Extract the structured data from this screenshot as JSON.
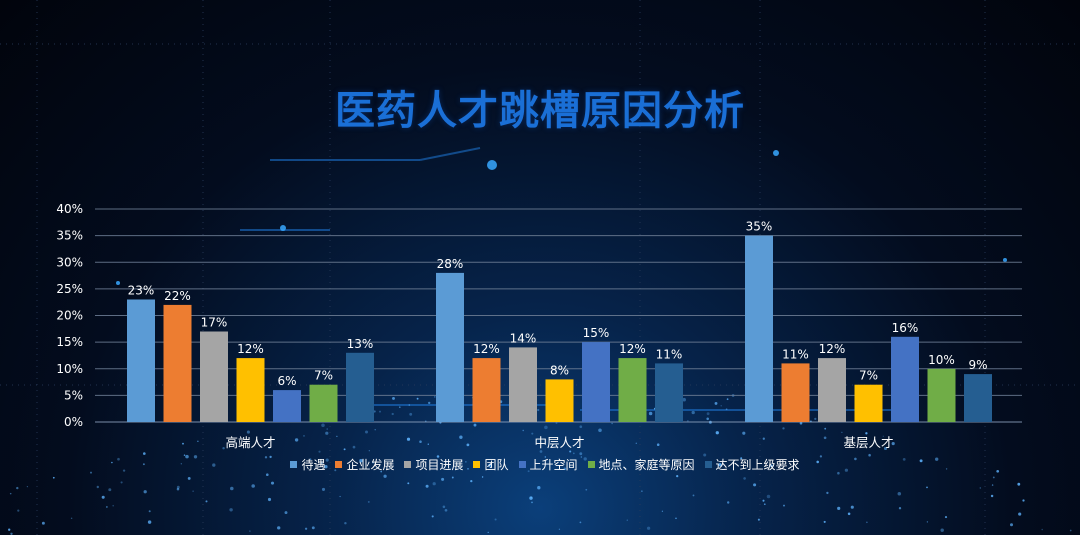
{
  "title": "医药人才跳槽原因分析",
  "chart_data": {
    "type": "bar",
    "categories": [
      "高端人才",
      "中层人才",
      "基层人才"
    ],
    "series": [
      {
        "name": "待遇",
        "color": "#5b9bd5",
        "values": [
          23,
          28,
          35
        ]
      },
      {
        "name": "企业发展",
        "color": "#ed7d31",
        "values": [
          22,
          12,
          11
        ]
      },
      {
        "name": "项目进展",
        "color": "#a5a5a5",
        "values": [
          17,
          14,
          12
        ]
      },
      {
        "name": "团队",
        "color": "#ffc000",
        "values": [
          12,
          8,
          7
        ]
      },
      {
        "name": "上升空间",
        "color": "#4472c4",
        "values": [
          6,
          15,
          16
        ]
      },
      {
        "name": "地点、家庭等原因",
        "color": "#70ad47",
        "values": [
          7,
          12,
          10
        ]
      },
      {
        "name": "达不到上级要求",
        "color": "#255e91",
        "values": [
          13,
          11,
          9
        ]
      }
    ],
    "value_suffix": "%",
    "ylim": [
      0,
      40
    ],
    "yticks": [
      0,
      5,
      10,
      15,
      20,
      25,
      30,
      35,
      40
    ],
    "xlabel": "",
    "ylabel": "",
    "grid": true,
    "legend_position": "bottom"
  }
}
